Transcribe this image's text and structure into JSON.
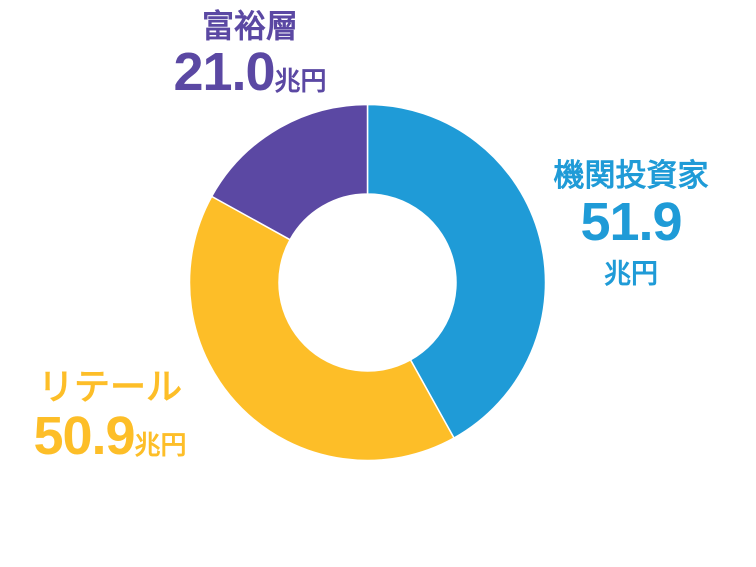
{
  "chart_data": {
    "type": "pie",
    "donut": true,
    "categories": [
      "機関投資家",
      "リテール",
      "富裕層"
    ],
    "values": [
      51.9,
      50.9,
      21.0
    ],
    "unit": "兆円",
    "colors": [
      "#1f9bd7",
      "#fdbe28",
      "#5b48a3"
    ],
    "start_angle": "top, clockwise",
    "legend": "none (direct labels)"
  }
}
